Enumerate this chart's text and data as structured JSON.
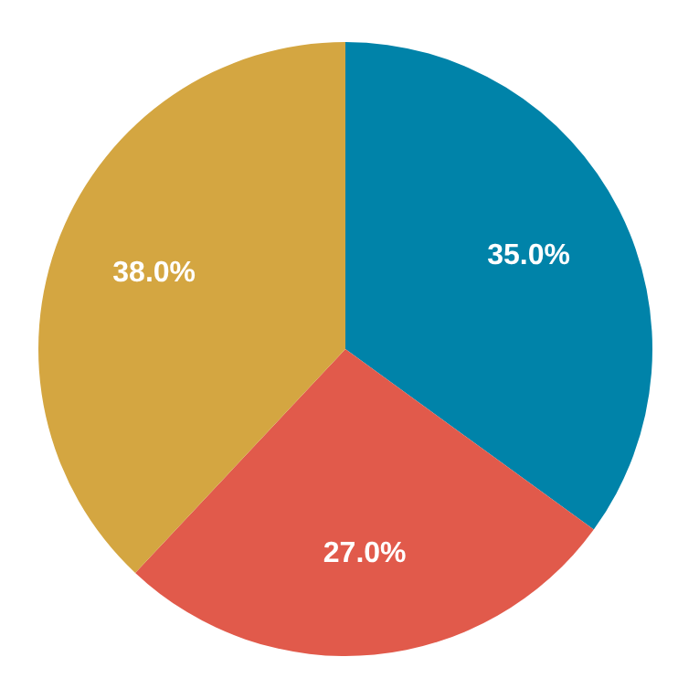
{
  "chart_data": {
    "type": "pie",
    "categories": [
      null,
      null,
      null
    ],
    "values": [
      35,
      27,
      38
    ],
    "colors": [
      "#0083a9",
      "#e15a4b",
      "#d4a641"
    ],
    "value_labels": [
      "35.0%",
      "27.0%",
      "38.0%"
    ]
  }
}
